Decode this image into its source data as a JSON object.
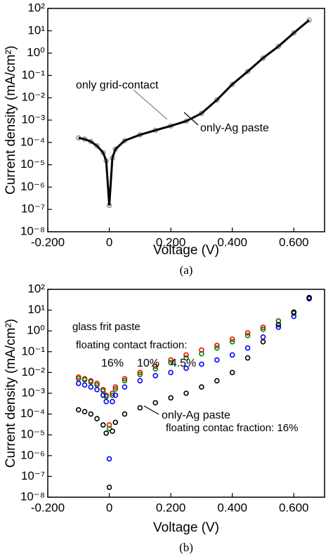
{
  "chart_data": [
    {
      "type": "scatter",
      "yscale": "log",
      "xlabel": "Voltage (V)",
      "ylabel": "Current density (mA/cm²)",
      "caption": "(a)",
      "x": [
        -0.1,
        -0.08,
        -0.06,
        -0.04,
        -0.02,
        -0.01,
        0,
        0.01,
        0.02,
        0.05,
        0.1,
        0.15,
        0.2,
        0.25,
        0.3,
        0.35,
        0.4,
        0.45,
        0.5,
        0.55,
        0.6,
        0.65
      ],
      "series": [
        {
          "name": "only grid-contact",
          "color": "#999999",
          "style": "markers",
          "values": [
            0.00016,
            0.00014,
            0.00011,
            7e-05,
            3.5e-05,
            1.5e-05,
            1.5e-07,
            2e-05,
            5e-05,
            0.00012,
            0.00022,
            0.00035,
            0.00055,
            0.0009,
            0.002,
            0.008,
            0.04,
            0.15,
            0.6,
            2,
            8,
            30
          ]
        },
        {
          "name": "only-Ag paste",
          "color": "#000000",
          "style": "line",
          "values": [
            0.00016,
            0.00014,
            0.00011,
            7e-05,
            3.5e-05,
            1.5e-05,
            1.5e-07,
            2e-05,
            5e-05,
            0.00012,
            0.00022,
            0.00035,
            0.00055,
            0.0009,
            0.002,
            0.008,
            0.04,
            0.15,
            0.6,
            2,
            8,
            30
          ]
        }
      ],
      "annotations": [],
      "xlim": [
        -0.2,
        0.7
      ],
      "xticks": [
        {
          "value": -0.2,
          "label": "-0.200"
        },
        0,
        {
          "value": 0.2,
          "label": "0.200"
        },
        {
          "value": 0.4,
          "label": "0.400"
        },
        {
          "value": 0.6,
          "label": "0.600"
        }
      ],
      "ylim": [
        1e-08,
        100
      ],
      "yticks": [
        {
          "value": 1e-08,
          "label": "10⁻⁸"
        },
        {
          "value": 1e-07,
          "label": "10⁻⁷"
        },
        {
          "value": 1e-06,
          "label": "10⁻⁶"
        },
        {
          "value": 1e-05,
          "label": "10⁻⁵"
        },
        {
          "value": 0.0001,
          "label": "10⁻⁴"
        },
        {
          "value": 0.001,
          "label": "10⁻³"
        },
        {
          "value": 0.01,
          "label": "10⁻²"
        },
        {
          "value": 0.1,
          "label": "10⁻¹"
        },
        {
          "value": 1,
          "label": "10⁰"
        },
        {
          "value": 10,
          "label": "10¹"
        },
        {
          "value": 100,
          "label": "10²"
        }
      ]
    },
    {
      "type": "scatter",
      "yscale": "log",
      "xlabel": "Voltage (V)",
      "ylabel": "Current density (mA/cm²)",
      "caption": "(b)",
      "x": [
        -0.1,
        -0.08,
        -0.06,
        -0.04,
        -0.02,
        -0.01,
        0,
        0.01,
        0.02,
        0.05,
        0.1,
        0.15,
        0.2,
        0.25,
        0.3,
        0.35,
        0.4,
        0.45,
        0.5,
        0.55,
        0.6,
        0.65
      ],
      "series": [
        {
          "name": "16%",
          "color": "#ff0000",
          "style": "markers",
          "values": [
            0.006,
            0.005,
            0.004,
            0.003,
            0.0015,
            0.0008,
            3e-05,
            0.001,
            0.002,
            0.005,
            0.01,
            0.02,
            0.04,
            0.07,
            0.12,
            0.2,
            0.4,
            0.8,
            1.5,
            3,
            8,
            40
          ]
        },
        {
          "name": "10%",
          "color": "#008000",
          "style": "markers",
          "values": [
            0.005,
            0.0045,
            0.0035,
            0.0025,
            0.0013,
            0.0007,
            2e-05,
            0.0008,
            0.0016,
            0.004,
            0.008,
            0.015,
            0.03,
            0.05,
            0.08,
            0.15,
            0.3,
            0.6,
            1.2,
            3,
            7,
            40
          ]
        },
        {
          "name": "4.5%",
          "color": "#0000ff",
          "style": "markers",
          "values": [
            0.003,
            0.0025,
            0.002,
            0.0015,
            0.0008,
            0.0004,
            7e-07,
            0.0004,
            0.0008,
            0.002,
            0.004,
            0.007,
            0.01,
            0.016,
            0.025,
            0.04,
            0.07,
            0.15,
            0.5,
            1.5,
            5,
            35
          ]
        },
        {
          "name": "only-Ag paste",
          "color": "#000000",
          "style": "markers",
          "values": [
            0.00016,
            0.00013,
            0.0001,
            6e-05,
            3e-05,
            1.2e-05,
            3e-08,
            1.5e-05,
            4e-05,
            0.0001,
            0.0002,
            0.00035,
            0.0006,
            0.001,
            0.002,
            0.004,
            0.01,
            0.05,
            0.3,
            2,
            8,
            40
          ]
        }
      ],
      "annotations": [
        "glass frit paste",
        "floating contact fraction:",
        "floating contac fraction: 16%"
      ],
      "xlim": [
        -0.2,
        0.7
      ],
      "xticks": [
        {
          "value": -0.2,
          "label": "-0.200"
        },
        0,
        {
          "value": 0.2,
          "label": "0.200"
        },
        {
          "value": 0.4,
          "label": "0.400"
        },
        {
          "value": 0.6,
          "label": "0.600"
        }
      ],
      "ylim": [
        1e-08,
        100
      ],
      "yticks": [
        {
          "value": 1e-08,
          "label": "10⁻⁸"
        },
        {
          "value": 1e-07,
          "label": "10⁻⁷"
        },
        {
          "value": 1e-06,
          "label": "10⁻⁶"
        },
        {
          "value": 1e-05,
          "label": "10⁻⁵"
        },
        {
          "value": 0.0001,
          "label": "10⁻⁴"
        },
        {
          "value": 0.001,
          "label": "10⁻³"
        },
        {
          "value": 0.01,
          "label": "10⁻²"
        },
        {
          "value": 0.1,
          "label": "10⁻¹"
        },
        {
          "value": 1,
          "label": "10⁰"
        },
        {
          "value": 10,
          "label": "10¹"
        },
        {
          "value": 100,
          "label": "10²"
        }
      ]
    }
  ]
}
